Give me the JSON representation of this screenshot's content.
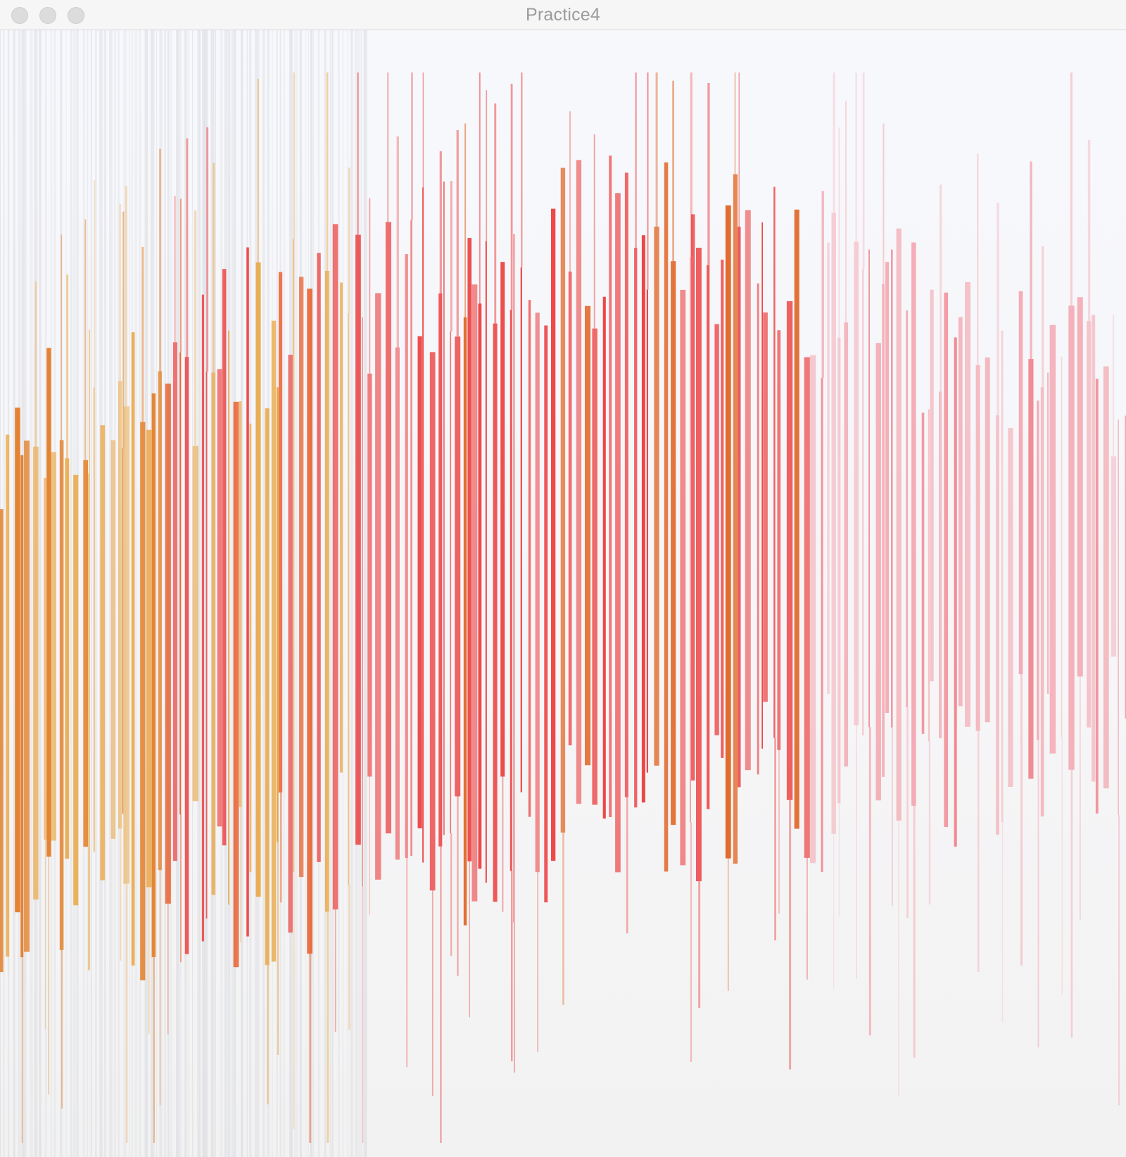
{
  "window": {
    "title": "Practice4",
    "controls": [
      "close-icon",
      "minimize-icon",
      "zoom-icon"
    ]
  },
  "palette": {
    "background_top": "#f7f8fc",
    "background_bottom": "#f3f3f3",
    "orange": "#e9a23b",
    "orange_dark": "#e0731c",
    "red": "#ec3b3b",
    "pink": "#f26b7a",
    "gray_stripe": "#dcdde3"
  }
}
